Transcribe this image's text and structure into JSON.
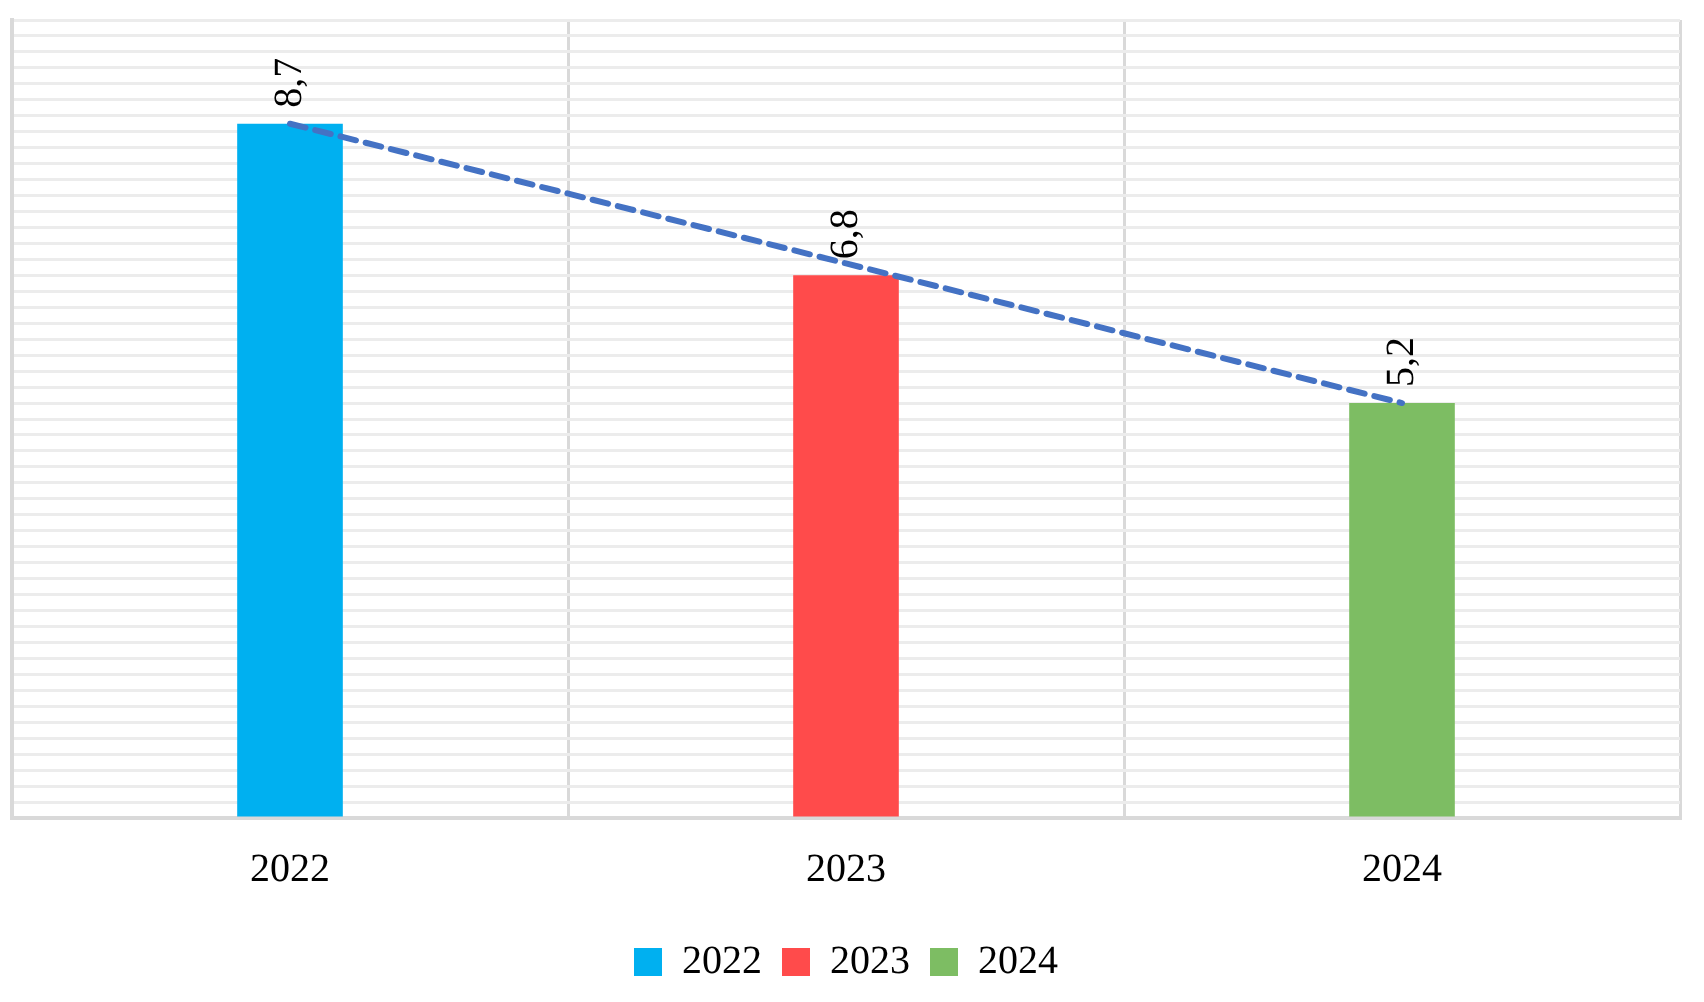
{
  "chart_data": {
    "type": "bar",
    "categories": [
      "2022",
      "2023",
      "2024"
    ],
    "series": [
      {
        "name": "2022",
        "color": "#00b0f0",
        "values": [
          8.7,
          null,
          null
        ],
        "value_labels": [
          "8,7",
          null,
          null
        ]
      },
      {
        "name": "2023",
        "color": "#ff4b4b",
        "values": [
          null,
          6.8,
          null
        ],
        "value_labels": [
          null,
          "6,8",
          null
        ]
      },
      {
        "name": "2024",
        "color": "#7dbd63",
        "values": [
          null,
          null,
          5.2
        ],
        "value_labels": [
          null,
          null,
          "5,2"
        ]
      },
      {
        "type": "line",
        "color": "#4472c4",
        "line_style": "dashed",
        "marker": "none",
        "values": [
          8.7,
          6.95,
          5.2
        ]
      }
    ],
    "ylim": [
      0,
      10
    ],
    "yticks": [
      {
        "value": 0,
        "label": null
      },
      {
        "value": 0.2,
        "label": null
      },
      {
        "value": 0.4,
        "label": null
      },
      {
        "value": 0.6,
        "label": null
      },
      {
        "value": 0.8,
        "label": null
      },
      {
        "value": 1,
        "label": null
      },
      {
        "value": 1.2,
        "label": null
      },
      {
        "value": 1.4,
        "label": null
      },
      {
        "value": 1.6,
        "label": null
      },
      {
        "value": 1.8,
        "label": null
      },
      {
        "value": 2,
        "label": null
      },
      {
        "value": 2.2,
        "label": null
      },
      {
        "value": 2.4,
        "label": null
      },
      {
        "value": 2.6,
        "label": null
      },
      {
        "value": 2.8,
        "label": null
      },
      {
        "value": 3,
        "label": null
      },
      {
        "value": 3.2,
        "label": null
      },
      {
        "value": 3.4,
        "label": null
      },
      {
        "value": 3.6,
        "label": null
      },
      {
        "value": 3.8,
        "label": null
      },
      {
        "value": 4,
        "label": null
      },
      {
        "value": 4.2,
        "label": null
      },
      {
        "value": 4.4,
        "label": null
      },
      {
        "value": 4.6,
        "label": null
      },
      {
        "value": 4.8,
        "label": null
      },
      {
        "value": 5,
        "label": null
      },
      {
        "value": 5.2,
        "label": null
      },
      {
        "value": 5.4,
        "label": null
      },
      {
        "value": 5.6,
        "label": null
      },
      {
        "value": 5.8,
        "label": null
      },
      {
        "value": 6,
        "label": null
      },
      {
        "value": 6.2,
        "label": null
      },
      {
        "value": 6.4,
        "label": null
      },
      {
        "value": 6.6,
        "label": null
      },
      {
        "value": 6.8,
        "label": null
      },
      {
        "value": 7,
        "label": null
      },
      {
        "value": 7.2,
        "label": null
      },
      {
        "value": 7.4,
        "label": null
      },
      {
        "value": 7.6,
        "label": null
      },
      {
        "value": 7.8,
        "label": null
      },
      {
        "value": 8,
        "label": null
      },
      {
        "value": 8.2,
        "label": null
      },
      {
        "value": 8.4,
        "label": null
      },
      {
        "value": 8.6,
        "label": null
      },
      {
        "value": 8.8,
        "label": null
      },
      {
        "value": 9,
        "label": null
      },
      {
        "value": 9.2,
        "label": null
      },
      {
        "value": 9.4,
        "label": null
      },
      {
        "value": 9.6,
        "label": null
      },
      {
        "value": 9.8,
        "label": null
      },
      {
        "value": 10,
        "label": null
      }
    ],
    "tick_labels": "x",
    "grid": true,
    "legend": "bottom"
  }
}
